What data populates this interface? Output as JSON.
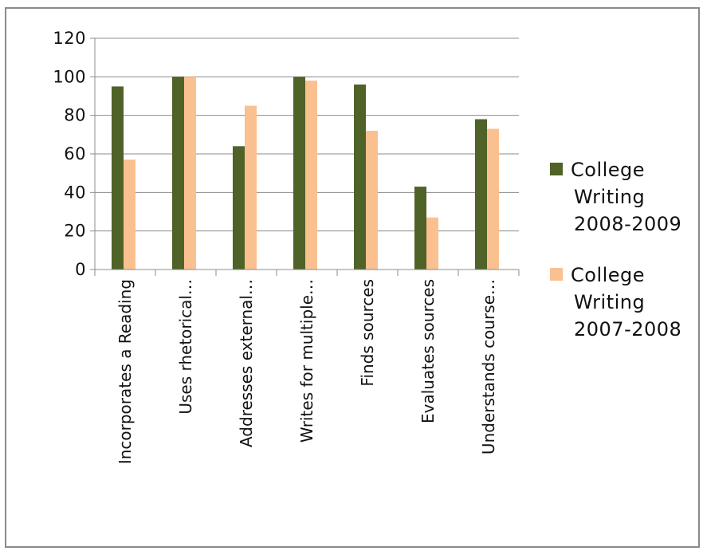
{
  "chart_data": {
    "type": "bar",
    "categories": [
      "Incorporates a Reading",
      "Uses rhetorical…",
      "Addresses external…",
      "Writes for multiple…",
      "Finds sources",
      "Evaluates sources",
      "Understands course…"
    ],
    "series": [
      {
        "name": "College Writing 2008-2009",
        "color": "#4f6228",
        "values": [
          95,
          100,
          64,
          100,
          96,
          43,
          78
        ]
      },
      {
        "name": "College Writing 2007-2008",
        "color": "#fac090",
        "values": [
          57,
          100,
          85,
          98,
          72,
          27,
          73
        ]
      }
    ],
    "legend": {
      "position": "right",
      "entries": [
        {
          "lines": [
            "College",
            "Writing",
            "2008-2009"
          ],
          "color": "#4f6228"
        },
        {
          "lines": [
            "College",
            "Writing",
            "2007-2008"
          ],
          "color": "#fac090"
        }
      ]
    },
    "yticks": [
      "0",
      "20",
      "40",
      "60",
      "80",
      "100",
      "120"
    ],
    "ylim": [
      0,
      120
    ],
    "grid": true
  }
}
